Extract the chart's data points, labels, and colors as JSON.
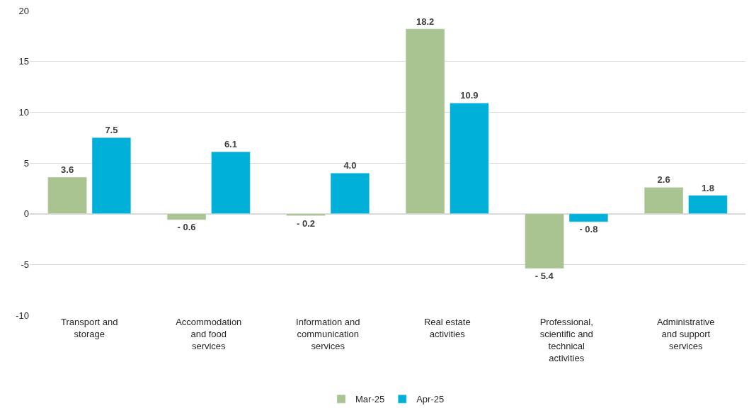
{
  "chart_data": {
    "type": "bar",
    "categories": [
      "Transport and storage",
      "Accommodation and food services",
      "Information and communication services",
      "Real estate activities",
      "Professional, scientific and technical activities",
      "Administrative and support services"
    ],
    "series": [
      {
        "name": "Mar-25",
        "color": "#a9c491",
        "values": [
          3.6,
          -0.6,
          -0.2,
          18.2,
          -5.4,
          2.6
        ],
        "value_labels": [
          "3.6",
          "- 0.6",
          "- 0.2",
          "18.2",
          "- 5.4",
          "2.6"
        ]
      },
      {
        "name": "Apr-25",
        "color": "#00b0d8",
        "values": [
          7.5,
          6.1,
          4.0,
          10.9,
          -0.8,
          1.8
        ],
        "value_labels": [
          "7.5",
          "6.1",
          "4.0",
          "10.9",
          "- 0.8",
          "1.8"
        ]
      }
    ],
    "ylim": [
      -10,
      20
    ],
    "yticks": [
      {
        "value": -10,
        "label": "-10"
      },
      {
        "value": -5,
        "label": "-5"
      },
      0,
      5,
      10,
      15,
      20
    ],
    "grid": "y",
    "legend": "bottom"
  }
}
